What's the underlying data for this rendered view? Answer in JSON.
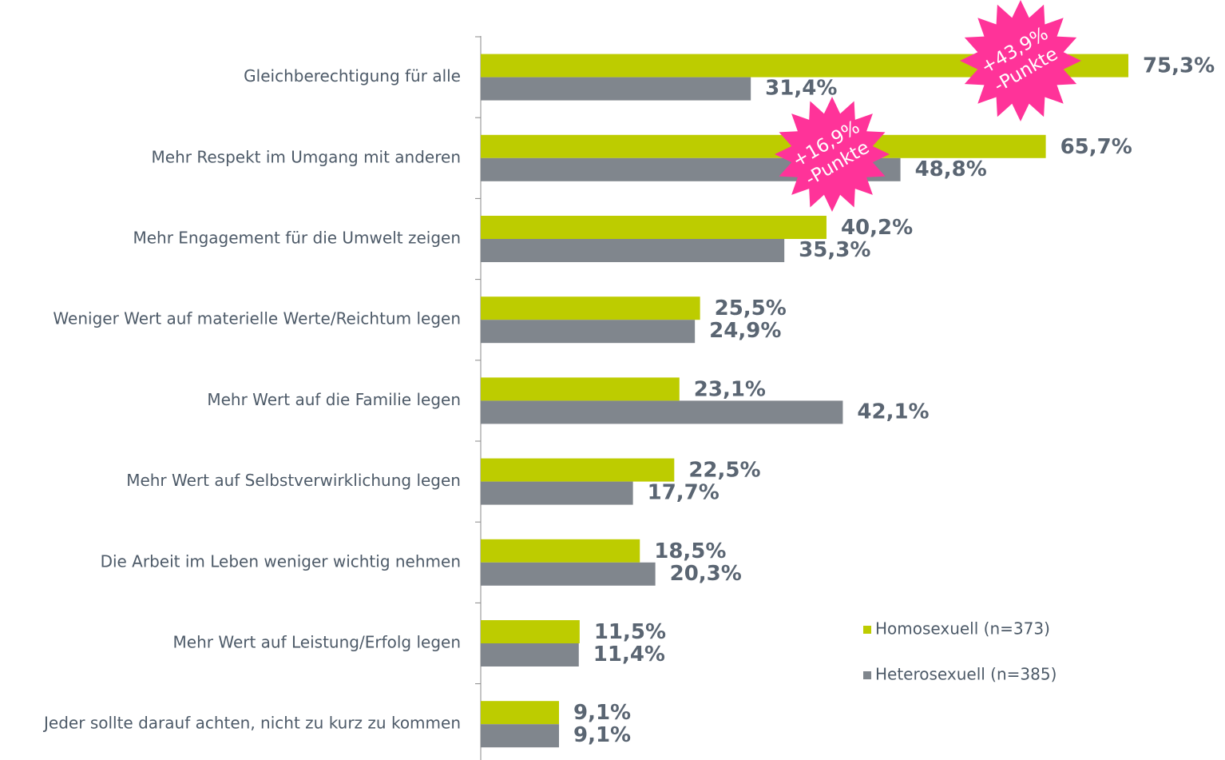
{
  "chart_data": {
    "type": "hbar",
    "categories": [
      "Gleichberechtigung für alle",
      "Mehr Respekt im Umgang mit anderen",
      "Mehr Engagement für die Umwelt zeigen",
      "Weniger Wert auf materielle Werte/Reichtum legen",
      "Mehr Wert auf die Familie legen",
      "Mehr Wert auf Selbstverwirklichung legen",
      "Die Arbeit im Leben weniger wichtig nehmen",
      "Mehr Wert auf Leistung/Erfolg legen",
      "Jeder sollte darauf achten, nicht zu kurz zu kommen"
    ],
    "series": [
      {
        "name": "Homosexuell (n=373)",
        "color": "#bdcc00",
        "values": [
          75.3,
          65.7,
          40.2,
          25.5,
          23.1,
          22.5,
          18.5,
          11.5,
          9.1
        ],
        "value_labels": [
          "75,3%",
          "65,7%",
          "40,2%",
          "25,5%",
          "23,1%",
          "22,5%",
          "18,5%",
          "11,5%",
          "9,1%"
        ]
      },
      {
        "name": "Heterosexuell (n=385)",
        "color": "#80868d",
        "values": [
          31.4,
          48.8,
          35.3,
          24.9,
          42.1,
          17.7,
          20.3,
          11.4,
          9.1
        ],
        "value_labels": [
          "31,4%",
          "48,8%",
          "35,3%",
          "24,9%",
          "42,1%",
          "17,7%",
          "20,3%",
          "11,4%",
          "9,1%"
        ]
      }
    ],
    "xlim": [
      0,
      80
    ],
    "annotations": [
      {
        "category": 0,
        "lines": [
          "+43,9%",
          "-Punkte"
        ],
        "color": "#ff3399"
      },
      {
        "category": 1,
        "lines": [
          "+16,9%",
          "-Punkte"
        ],
        "color": "#ff3399"
      }
    ]
  }
}
